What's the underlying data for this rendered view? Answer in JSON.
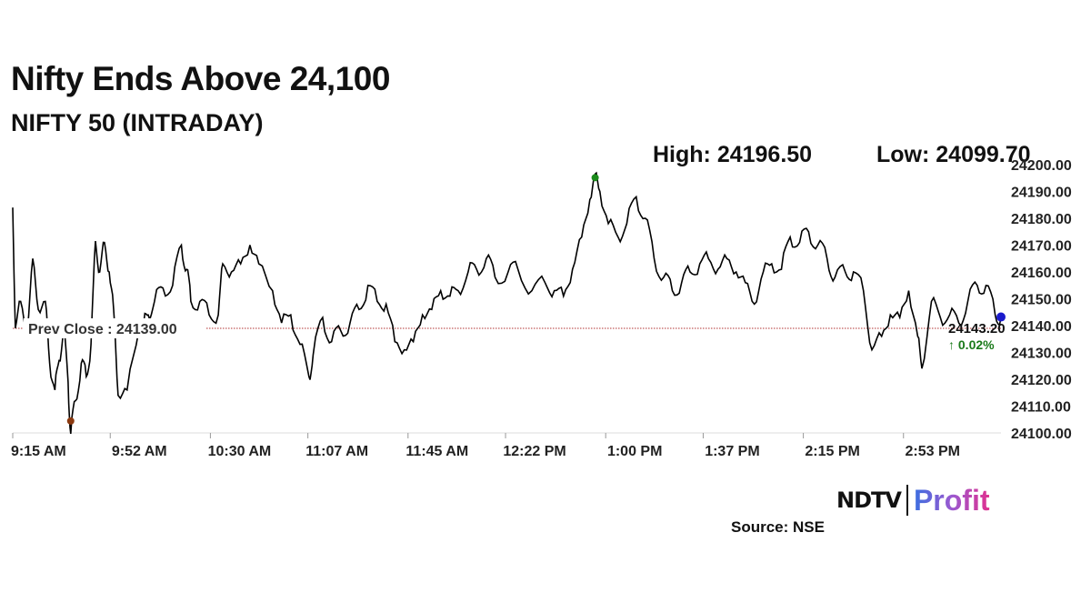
{
  "header": {
    "title": "Nifty Ends Above 24,100",
    "subtitle": "NIFTY 50 (INTRADAY)",
    "high_label": "High: 24196.50",
    "low_label": "Low: 24099.70"
  },
  "footer": {
    "source": "Source: NSE",
    "logo_text_1": "NDTV",
    "logo_text_2": "Profit"
  },
  "colors": {
    "line": "#000000",
    "prev_close": "#b03030",
    "high_marker": "#1a8a1a",
    "low_marker": "#8b3a10",
    "last_marker": "#1a1acc",
    "change": "#1a7a1a"
  },
  "chart_data": {
    "type": "line",
    "title": "NIFTY 50 (INTRADAY)",
    "xlabel": "",
    "ylabel": "",
    "ylim": [
      24100,
      24200
    ],
    "yticks": [
      "24100.00",
      "24110.00",
      "24120.00",
      "24130.00",
      "24140.00",
      "24150.00",
      "24160.00",
      "24170.00",
      "24180.00",
      "24190.00",
      "24200.00"
    ],
    "xlim_minutes_from_open": [
      0,
      375
    ],
    "xticks": [
      {
        "label": "9:15 AM",
        "min": 0
      },
      {
        "label": "9:52 AM",
        "min": 37
      },
      {
        "label": "10:30 AM",
        "min": 75
      },
      {
        "label": "11:07 AM",
        "min": 112
      },
      {
        "label": "11:45 AM",
        "min": 150
      },
      {
        "label": "12:22 PM",
        "min": 187
      },
      {
        "label": "1:00 PM",
        "min": 225
      },
      {
        "label": "1:37 PM",
        "min": 262
      },
      {
        "label": "2:15 PM",
        "min": 300
      },
      {
        "label": "2:53 PM",
        "min": 338
      }
    ],
    "prev_close": 24139.0,
    "prev_close_label": "Prev Close : 24139.00",
    "last_value_label": "24143.20",
    "change_label": "↑ 0.02%",
    "high": {
      "min": 221,
      "value": 24196.5
    },
    "low": {
      "min": 22,
      "value": 24099.7
    },
    "series": [
      {
        "name": "NIFTY 50",
        "points": [
          [
            0,
            24184
          ],
          [
            1,
            24139
          ],
          [
            3,
            24149
          ],
          [
            5.5,
            24137.6
          ],
          [
            7.6,
            24165
          ],
          [
            9.7,
            24146
          ],
          [
            12.4,
            24149
          ],
          [
            14,
            24126
          ],
          [
            16,
            24116
          ],
          [
            17.6,
            24127
          ],
          [
            19.3,
            24139
          ],
          [
            21,
            24119
          ],
          [
            22,
            24099.7
          ],
          [
            23.8,
            24112
          ],
          [
            26,
            24126
          ],
          [
            27.9,
            24121
          ],
          [
            29.7,
            24133
          ],
          [
            31.4,
            24171.5
          ],
          [
            33,
            24160
          ],
          [
            34.8,
            24171
          ],
          [
            36.6,
            24160
          ],
          [
            38.3,
            24146
          ],
          [
            40,
            24114
          ],
          [
            43.4,
            24116
          ],
          [
            48,
            24139
          ],
          [
            49.7,
            24141
          ],
          [
            51.4,
            24144
          ],
          [
            53.8,
            24149
          ],
          [
            57,
            24154
          ],
          [
            60.7,
            24155
          ],
          [
            64,
            24170
          ],
          [
            66,
            24161
          ],
          [
            67.6,
            24149
          ],
          [
            71,
            24149
          ],
          [
            74.5,
            24144
          ],
          [
            78,
            24144
          ],
          [
            79.7,
            24163
          ],
          [
            83,
            24160
          ],
          [
            86.5,
            24163
          ],
          [
            90,
            24170
          ],
          [
            93.4,
            24163
          ],
          [
            98.6,
            24153
          ],
          [
            102,
            24141
          ],
          [
            105.5,
            24144
          ],
          [
            109,
            24133
          ],
          [
            112.4,
            24121
          ],
          [
            114,
            24129
          ],
          [
            117.6,
            24143
          ],
          [
            121,
            24134
          ],
          [
            124.5,
            24138
          ],
          [
            128,
            24141
          ],
          [
            131.4,
            24146
          ],
          [
            134.8,
            24155
          ],
          [
            138.3,
            24149
          ],
          [
            141.7,
            24148
          ],
          [
            145,
            24134
          ],
          [
            148.6,
            24131
          ],
          [
            152,
            24134
          ],
          [
            155.5,
            24144
          ],
          [
            159,
            24146
          ],
          [
            162.4,
            24153
          ],
          [
            165.9,
            24151
          ],
          [
            169,
            24153
          ],
          [
            172.8,
            24160
          ],
          [
            176,
            24161
          ],
          [
            179.7,
            24165
          ],
          [
            183,
            24158
          ],
          [
            188,
            24160
          ],
          [
            191.7,
            24161
          ],
          [
            197,
            24153
          ],
          [
            202,
            24156
          ],
          [
            205.5,
            24153
          ],
          [
            209,
            24151
          ],
          [
            212.4,
            24161
          ],
          [
            215.9,
            24173
          ],
          [
            219,
            24187
          ],
          [
            221,
            24196.5
          ],
          [
            222.8,
            24190
          ],
          [
            226,
            24178
          ],
          [
            229.7,
            24173
          ],
          [
            233,
            24178
          ],
          [
            236.6,
            24188
          ],
          [
            240,
            24180
          ],
          [
            243.4,
            24165
          ],
          [
            247,
            24158
          ],
          [
            250.3,
            24153
          ],
          [
            253.8,
            24156
          ],
          [
            257,
            24160
          ],
          [
            260.7,
            24163
          ],
          [
            264,
            24165
          ],
          [
            267.6,
            24161
          ],
          [
            271,
            24165
          ],
          [
            274.5,
            24160
          ],
          [
            278,
            24156
          ],
          [
            281.4,
            24148
          ],
          [
            284.8,
            24160
          ],
          [
            288,
            24163
          ],
          [
            291.7,
            24161
          ],
          [
            295,
            24173
          ],
          [
            298.6,
            24171
          ],
          [
            302,
            24175
          ],
          [
            305.5,
            24170
          ],
          [
            309,
            24165
          ],
          [
            312,
            24158
          ],
          [
            315.9,
            24160
          ],
          [
            319,
            24160
          ],
          [
            322.8,
            24153
          ],
          [
            326,
            24131
          ],
          [
            329.7,
            24136
          ],
          [
            333,
            24144
          ],
          [
            336.6,
            24143
          ],
          [
            340,
            24153
          ],
          [
            343.4,
            24136
          ],
          [
            345,
            24124
          ],
          [
            348.6,
            24149
          ],
          [
            352,
            24143
          ],
          [
            355.5,
            24144
          ],
          [
            359,
            24141
          ],
          [
            362.4,
            24149
          ],
          [
            366,
            24155
          ],
          [
            369.3,
            24155
          ],
          [
            372.8,
            24144
          ],
          [
            375,
            24143.2
          ]
        ]
      }
    ]
  }
}
